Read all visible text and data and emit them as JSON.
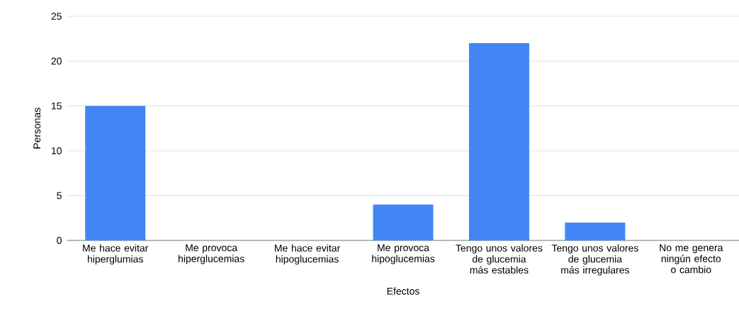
{
  "chart_data": {
    "type": "bar",
    "xlabel": "Efectos",
    "ylabel": "Personas",
    "categories": [
      "Me hace evitar hiperglumias",
      "Me provoca hiperglucemias",
      "Me hace evitar hipoglucemias",
      "Me provoca hipoglucemias",
      "Tengo unos valores de glucemia más estables",
      "Tengo unos valores de glucemia más irregulares",
      "No me genera ningún efecto o cambio"
    ],
    "values": [
      15,
      0,
      0,
      4,
      22,
      2,
      0
    ],
    "color": "#4285f4",
    "ylim": [
      0,
      25
    ],
    "yticks": [
      0,
      5,
      10,
      15,
      20,
      25
    ],
    "grid": "y"
  }
}
